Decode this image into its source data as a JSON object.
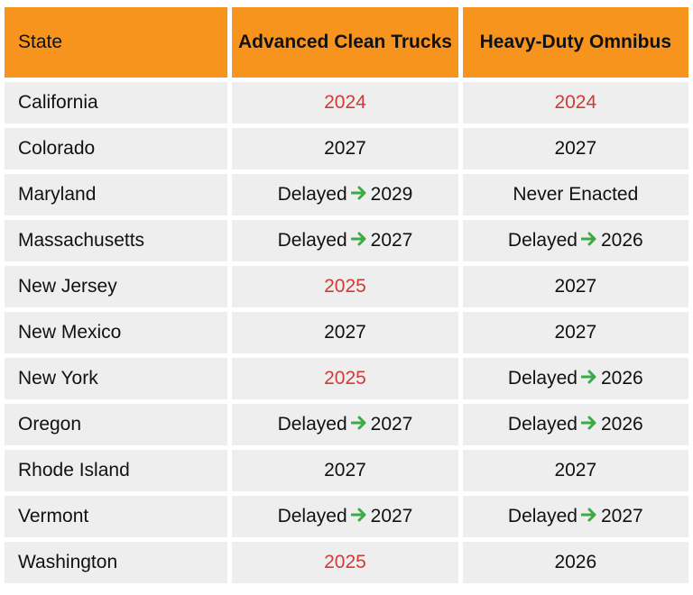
{
  "colors": {
    "header_bg": "#f7941d",
    "row_bg": "#eeeeee",
    "highlight_red": "#d23b35",
    "arrow_green": "#3cab45"
  },
  "header": {
    "state": "State",
    "act": "Advanced Clean Trucks",
    "omnibus": "Heavy-Duty Omnibus"
  },
  "arrow_icon": "right-arrow",
  "rows": [
    {
      "state": "California",
      "act": {
        "type": "red",
        "value": "2024"
      },
      "omnibus": {
        "type": "red",
        "value": "2024"
      }
    },
    {
      "state": "Colorado",
      "act": {
        "type": "plain",
        "value": "2027"
      },
      "omnibus": {
        "type": "plain",
        "value": "2027"
      }
    },
    {
      "state": "Maryland",
      "act": {
        "type": "delayed",
        "label": "Delayed",
        "value": "2029"
      },
      "omnibus": {
        "type": "plain",
        "value": "Never Enacted"
      }
    },
    {
      "state": "Massachusetts",
      "act": {
        "type": "delayed",
        "label": "Delayed",
        "value": "2027"
      },
      "omnibus": {
        "type": "delayed",
        "label": "Delayed",
        "value": "2026"
      }
    },
    {
      "state": "New Jersey",
      "act": {
        "type": "red",
        "value": "2025"
      },
      "omnibus": {
        "type": "plain",
        "value": "2027"
      }
    },
    {
      "state": "New Mexico",
      "act": {
        "type": "plain",
        "value": "2027"
      },
      "omnibus": {
        "type": "plain",
        "value": "2027"
      }
    },
    {
      "state": "New York",
      "act": {
        "type": "red",
        "value": "2025"
      },
      "omnibus": {
        "type": "delayed",
        "label": "Delayed",
        "value": "2026"
      }
    },
    {
      "state": "Oregon",
      "act": {
        "type": "delayed",
        "label": "Delayed",
        "value": "2027"
      },
      "omnibus": {
        "type": "delayed",
        "label": "Delayed",
        "value": "2026"
      }
    },
    {
      "state": "Rhode Island",
      "act": {
        "type": "plain",
        "value": "2027"
      },
      "omnibus": {
        "type": "plain",
        "value": "2027"
      }
    },
    {
      "state": "Vermont",
      "act": {
        "type": "delayed",
        "label": "Delayed",
        "value": "2027"
      },
      "omnibus": {
        "type": "delayed",
        "label": "Delayed",
        "value": "2027"
      }
    },
    {
      "state": "Washington",
      "act": {
        "type": "red",
        "value": "2025"
      },
      "omnibus": {
        "type": "plain",
        "value": "2026"
      }
    }
  ]
}
